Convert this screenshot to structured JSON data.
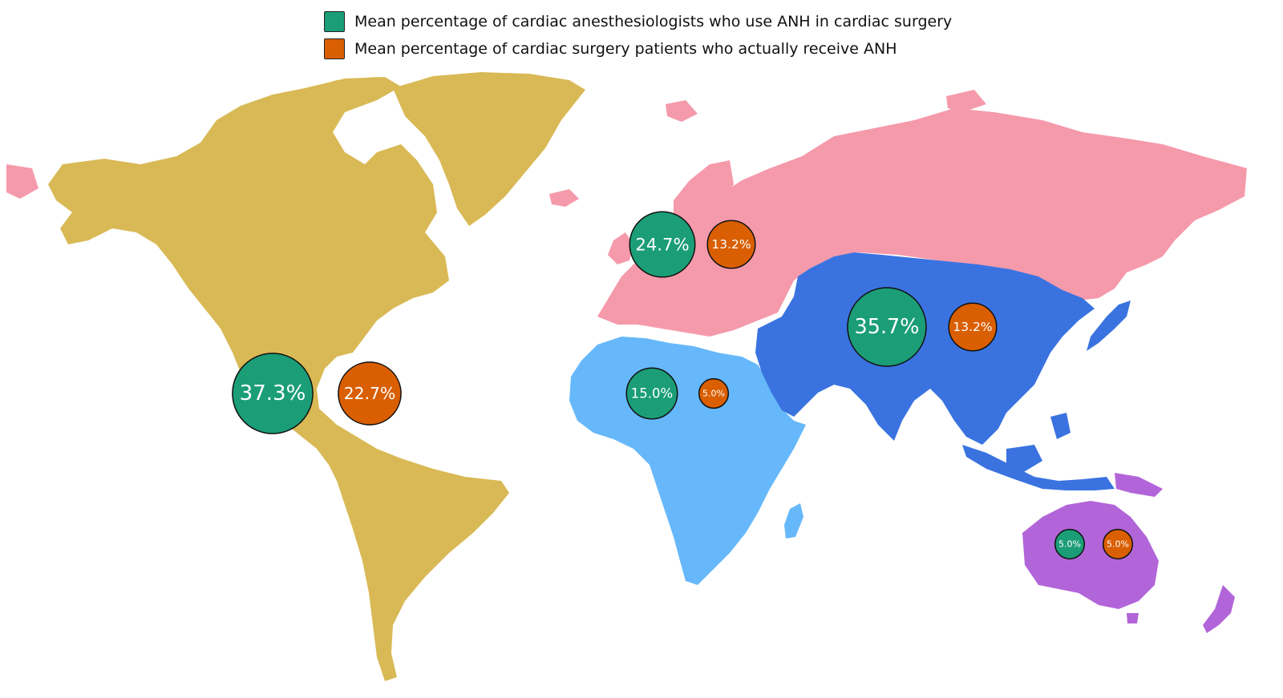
{
  "chart_data": {
    "type": "map",
    "legend": [
      {
        "key": "surgeons",
        "label": "Mean percentage of cardiac anesthesiologists who use ANH in cardiac surgery",
        "color": "#1b9e77"
      },
      {
        "key": "patients",
        "label": "Mean percentage of cardiac surgery patients who actually receive ANH",
        "color": "#d95f02"
      }
    ],
    "region_colors": {
      "americas": "#d9b955",
      "europe_russia": "#f59aab",
      "africa": "#66b8fa",
      "asia": "#3a73e0",
      "oceania": "#b265d9"
    },
    "regions": [
      {
        "id": "americas",
        "values": {
          "surgeons": "37.3%",
          "patients": "22.7%"
        }
      },
      {
        "id": "europe_russia",
        "values": {
          "surgeons": "24.7%",
          "patients": "13.2%"
        }
      },
      {
        "id": "asia",
        "values": {
          "surgeons": "35.7%",
          "patients": "13.2%"
        }
      },
      {
        "id": "africa",
        "values": {
          "surgeons": "15.0%",
          "patients": "5.0%"
        }
      },
      {
        "id": "oceania",
        "values": {
          "surgeons": "5.0%",
          "patients": "5.0%"
        }
      }
    ]
  }
}
